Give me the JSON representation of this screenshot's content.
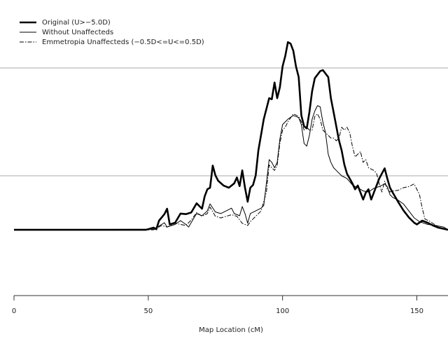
{
  "chart_data": {
    "type": "line",
    "xlabel": "Map Location (cM)",
    "xlim": [
      0,
      161.6
    ],
    "xticks": [
      0,
      50,
      100,
      150
    ],
    "ylim": [
      -1.22,
      4.26
    ],
    "hlines": [
      1,
      3
    ],
    "legend": "upper left",
    "series": [
      {
        "name": "Original (U>−5.0D)",
        "color": "#000000",
        "line_width": 2.6,
        "dash": "solid",
        "x": [
          0,
          49,
          50,
          52,
          53,
          54,
          56,
          57,
          58,
          60,
          62,
          64,
          66,
          68,
          70,
          71,
          72,
          73,
          74,
          75,
          76,
          78,
          80,
          82,
          83,
          84,
          85,
          86,
          87,
          88,
          89,
          90,
          91,
          93,
          95,
          96,
          97,
          98,
          99,
          100,
          101,
          102,
          103,
          104,
          105,
          106,
          107,
          108,
          109,
          110,
          111,
          112,
          114,
          115,
          117,
          118,
          119,
          120,
          121,
          122,
          123,
          124,
          126,
          127,
          128,
          130,
          131,
          132,
          133,
          134,
          136,
          138,
          139,
          140,
          141,
          143,
          145,
          147,
          149,
          150,
          152,
          154,
          156,
          158,
          161.6
        ],
        "values": [
          0,
          0,
          0.01,
          0.04,
          0.01,
          0.17,
          0.29,
          0.39,
          0.1,
          0.13,
          0.3,
          0.29,
          0.32,
          0.49,
          0.39,
          0.62,
          0.75,
          0.78,
          1.19,
          1.01,
          0.91,
          0.82,
          0.78,
          0.86,
          0.97,
          0.81,
          1.1,
          0.78,
          0.52,
          0.78,
          0.83,
          1.01,
          1.47,
          2.05,
          2.44,
          2.42,
          2.73,
          2.44,
          2.64,
          3.03,
          3.22,
          3.48,
          3.45,
          3.32,
          3.03,
          2.83,
          2.12,
          1.92,
          1.88,
          2.18,
          2.57,
          2.81,
          2.94,
          2.96,
          2.83,
          2.44,
          2.18,
          1.92,
          1.66,
          1.47,
          1.21,
          1.04,
          0.86,
          0.75,
          0.82,
          0.56,
          0.69,
          0.75,
          0.56,
          0.69,
          0.95,
          1.14,
          0.95,
          0.78,
          0.69,
          0.52,
          0.36,
          0.23,
          0.13,
          0.1,
          0.17,
          0.13,
          0.08,
          0.04,
          0
        ]
      },
      {
        "name": "Without Unaffecteds",
        "color": "#000000",
        "line_width": 1,
        "dash": "solid",
        "x": [
          0,
          52,
          55,
          56,
          57,
          60,
          62,
          64,
          65,
          67,
          68,
          70,
          72,
          73,
          75,
          77,
          79,
          81,
          82,
          84,
          85,
          86,
          87,
          88,
          90,
          92,
          93,
          95,
          96,
          97,
          98,
          99,
          100,
          101,
          102,
          104,
          105,
          106,
          107,
          108,
          109,
          110,
          111,
          112,
          113,
          114,
          115,
          116,
          117,
          118,
          119,
          120,
          122,
          124,
          126,
          128,
          130,
          132,
          134,
          136,
          138,
          139,
          140,
          141,
          143,
          145,
          147,
          149,
          151,
          154,
          157,
          160,
          161.6
        ],
        "values": [
          0,
          0.01,
          0.1,
          0.13,
          0.05,
          0.1,
          0.17,
          0.1,
          0.05,
          0.22,
          0.3,
          0.26,
          0.35,
          0.48,
          0.33,
          0.3,
          0.35,
          0.4,
          0.3,
          0.26,
          0.43,
          0.3,
          0.12,
          0.3,
          0.35,
          0.4,
          0.45,
          1.3,
          1.25,
          1.15,
          1.25,
          1.68,
          1.95,
          2.0,
          2.05,
          2.12,
          2.1,
          2.08,
          1.95,
          1.6,
          1.55,
          1.75,
          2.05,
          2.2,
          2.3,
          2.28,
          2.0,
          1.8,
          1.4,
          1.25,
          1.15,
          1.1,
          1.0,
          0.95,
          0.83,
          0.78,
          0.72,
          0.7,
          0.77,
          0.8,
          0.85,
          0.8,
          0.65,
          0.6,
          0.55,
          0.48,
          0.35,
          0.22,
          0.15,
          0.1,
          0.08,
          0.05,
          0
        ]
      },
      {
        "name": "Emmetropia Unaffecteds (−0.5D<=U<=0.5D)",
        "color": "#000000",
        "line_width": 1,
        "dash": "6 2 1.5 2",
        "x": [
          0,
          52,
          55,
          57,
          60,
          62,
          64,
          66,
          68,
          70,
          72,
          73,
          75,
          77,
          79,
          81,
          83,
          85,
          87,
          88,
          90,
          92,
          94,
          95,
          96,
          97,
          98,
          99,
          100,
          101,
          102,
          104,
          106,
          107,
          108,
          109,
          110,
          111,
          112,
          113,
          114,
          115,
          116,
          117,
          118,
          119,
          120,
          121,
          122,
          123,
          124,
          125,
          126,
          127,
          128,
          129,
          130,
          131,
          132,
          134,
          135,
          136,
          137,
          138,
          139,
          140,
          141,
          143,
          145,
          147,
          149,
          151,
          152,
          153,
          155,
          158,
          161.6
        ],
        "values": [
          0,
          0,
          0.08,
          0.05,
          0.12,
          0.1,
          0.08,
          0.18,
          0.32,
          0.25,
          0.3,
          0.42,
          0.25,
          0.22,
          0.25,
          0.28,
          0.25,
          0.12,
          0.08,
          0.15,
          0.25,
          0.35,
          0.7,
          1.2,
          1.15,
          1.1,
          1.2,
          1.6,
          1.85,
          1.9,
          2.0,
          2.15,
          2.1,
          2.0,
          1.85,
          1.9,
          1.85,
          1.85,
          2.1,
          2.15,
          2.05,
          1.85,
          1.8,
          1.75,
          1.7,
          1.7,
          1.65,
          1.7,
          1.9,
          1.85,
          1.9,
          1.8,
          1.55,
          1.35,
          1.4,
          1.45,
          1.25,
          1.3,
          1.15,
          1.1,
          1.05,
          0.85,
          0.7,
          0.9,
          0.75,
          0.7,
          0.72,
          0.73,
          0.78,
          0.8,
          0.85,
          0.65,
          0.4,
          0.2,
          0.15,
          0.05,
          0
        ]
      }
    ]
  }
}
